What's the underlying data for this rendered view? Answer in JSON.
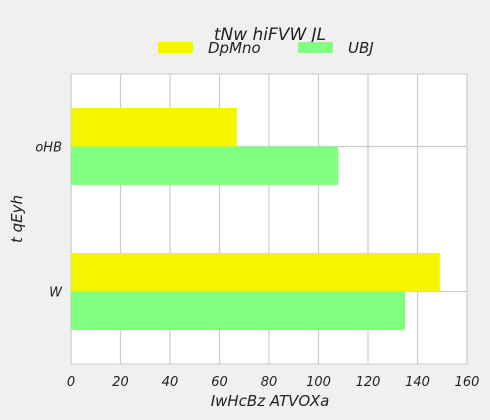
{
  "chart_data": {
    "type": "bar",
    "orientation": "horizontal",
    "title": "tNw hiFVW JL",
    "xlabel": "IwHcBz ATVOXa",
    "ylabel": "t qEyh",
    "categories": [
      "oHB",
      "W"
    ],
    "series": [
      {
        "name": "DpMno",
        "values": [
          67,
          149
        ],
        "color": "#f5f500"
      },
      {
        "name": "UBJ",
        "values": [
          108,
          135
        ],
        "color": "#80ff80"
      }
    ],
    "xlim": [
      0,
      160
    ],
    "xticks": [
      "0",
      "20",
      "40",
      "60",
      "80",
      "100",
      "120",
      "140",
      "160"
    ],
    "grid": true,
    "legend": "top-center"
  }
}
